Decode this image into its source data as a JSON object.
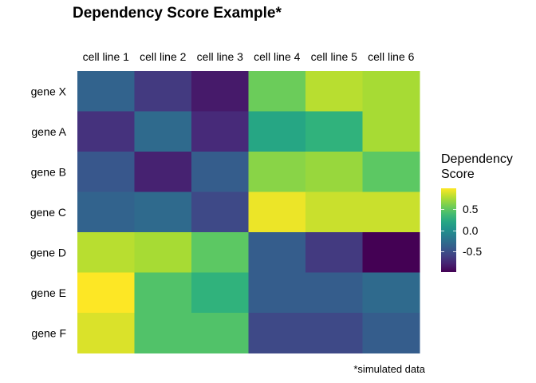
{
  "chart_data": {
    "type": "heatmap",
    "title": "Dependency Score Example*",
    "caption": "*simulated data",
    "columns": [
      "cell line 1",
      "cell line 2",
      "cell line 3",
      "cell line 4",
      "cell line 5",
      "cell line 6"
    ],
    "rows": [
      "gene X",
      "gene A",
      "gene B",
      "gene C",
      "gene D",
      "gene E",
      "gene F"
    ],
    "values": [
      [
        -0.35,
        -0.65,
        -0.85,
        0.55,
        0.8,
        0.75
      ],
      [
        -0.7,
        -0.3,
        -0.75,
        0.2,
        0.3,
        0.75
      ],
      [
        -0.45,
        -0.8,
        -0.4,
        0.65,
        0.7,
        0.5
      ],
      [
        -0.35,
        -0.3,
        -0.55,
        0.95,
        0.85,
        0.85
      ],
      [
        0.8,
        0.75,
        0.5,
        -0.4,
        -0.65,
        -1.0
      ],
      [
        1.0,
        0.45,
        0.3,
        -0.4,
        -0.4,
        -0.3
      ],
      [
        0.9,
        0.45,
        0.45,
        -0.55,
        -0.55,
        -0.4
      ]
    ],
    "legend": {
      "title": "Dependency Score",
      "position": "right",
      "range": [
        -1.0,
        1.0
      ],
      "ticks": [
        0.5,
        0.0,
        -0.5
      ],
      "tick_labels": [
        "0.5",
        "0.0",
        "-0.5"
      ]
    },
    "colormap": "viridis",
    "grid": false
  }
}
